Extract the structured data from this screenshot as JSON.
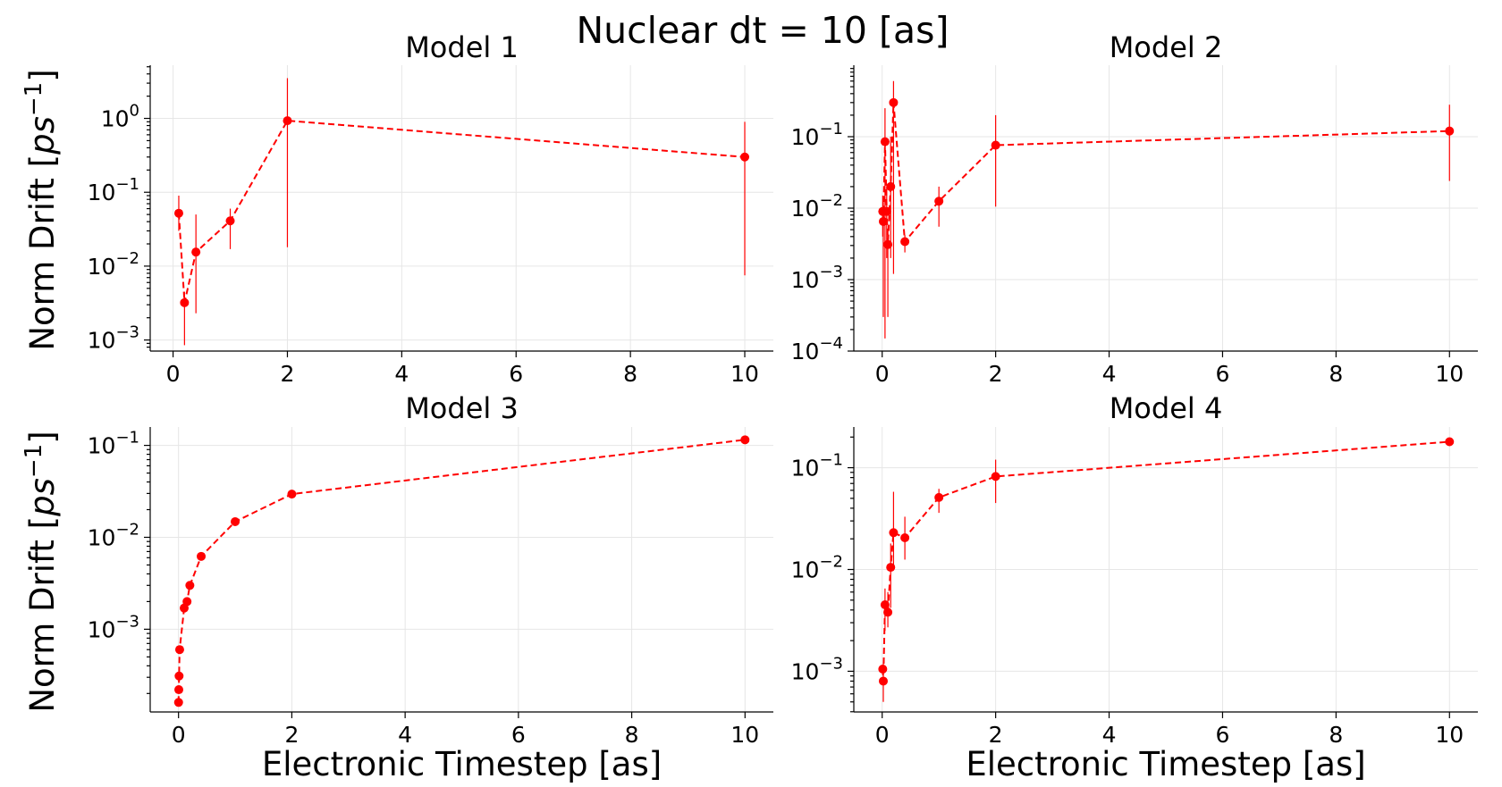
{
  "figure": {
    "suptitle": "Nuclear dt = 10 [as]",
    "line_color": "#ff0000"
  },
  "chart_data": [
    {
      "type": "line",
      "title": "Model 1",
      "xlabel": "",
      "ylabel": "Norm Drift [ps^-1]",
      "yscale": "log",
      "grid": true,
      "xlim": [
        -0.4,
        10.5
      ],
      "ylim_exp": [
        -3.15,
        0.72
      ],
      "xticks": [
        0,
        2,
        4,
        6,
        8,
        10
      ],
      "yticks_exp": [
        -3,
        -2,
        -1,
        0
      ],
      "points": [
        {
          "x": 0.1,
          "y": 0.052,
          "lo": 0.03,
          "hi": 0.09
        },
        {
          "x": 0.2,
          "y": 0.0032,
          "lo": 0.00085,
          "hi": 0.0045
        },
        {
          "x": 0.4,
          "y": 0.0155,
          "lo": 0.0023,
          "hi": 0.05
        },
        {
          "x": 1.0,
          "y": 0.041,
          "lo": 0.017,
          "hi": 0.06
        },
        {
          "x": 2.0,
          "y": 0.93,
          "lo": 0.018,
          "hi": 3.5
        },
        {
          "x": 10.0,
          "y": 0.3,
          "lo": 0.0075,
          "hi": 0.9
        }
      ]
    },
    {
      "type": "line",
      "title": "Model 2",
      "xlabel": "",
      "ylabel": "",
      "yscale": "log",
      "grid": true,
      "xlim": [
        -0.5,
        10.5
      ],
      "ylim_exp": [
        -4.0,
        -0.0
      ],
      "xticks": [
        0,
        2,
        4,
        6,
        8,
        10
      ],
      "yticks_exp": [
        -4,
        -3,
        -2,
        -1
      ],
      "points": [
        {
          "x": 0.01,
          "y": 0.009,
          "lo": 0.004,
          "hi": 0.015
        },
        {
          "x": 0.02,
          "y": 0.0065,
          "lo": 0.0003,
          "hi": 0.012
        },
        {
          "x": 0.05,
          "y": 0.085,
          "lo": 0.00015,
          "hi": 0.25
        },
        {
          "x": 0.08,
          "y": 0.009,
          "lo": 0.002,
          "hi": 0.02
        },
        {
          "x": 0.1,
          "y": 0.0031,
          "lo": 0.0003,
          "hi": 0.005
        },
        {
          "x": 0.15,
          "y": 0.02,
          "lo": 0.002,
          "hi": 0.1
        },
        {
          "x": 0.2,
          "y": 0.3,
          "lo": 0.0012,
          "hi": 0.6
        },
        {
          "x": 0.4,
          "y": 0.0034,
          "lo": 0.0024,
          "hi": 0.0042
        },
        {
          "x": 1.0,
          "y": 0.0125,
          "lo": 0.0055,
          "hi": 0.02
        },
        {
          "x": 2.0,
          "y": 0.076,
          "lo": 0.0105,
          "hi": 0.2
        },
        {
          "x": 10.0,
          "y": 0.12,
          "lo": 0.024,
          "hi": 0.28
        }
      ]
    },
    {
      "type": "line",
      "title": "Model 3",
      "xlabel": "Electronic Timestep [as]",
      "ylabel": "Norm Drift [ps^-1]",
      "yscale": "log",
      "grid": true,
      "xlim": [
        -0.5,
        10.5
      ],
      "ylim_exp": [
        -3.9,
        -0.8
      ],
      "xticks": [
        0,
        2,
        4,
        6,
        8,
        10
      ],
      "yticks_exp": [
        -3,
        -2,
        -1
      ],
      "points": [
        {
          "x": 0.001,
          "y": 0.00016,
          "lo": 0.00016,
          "hi": 0.00016
        },
        {
          "x": 0.005,
          "y": 0.00022,
          "lo": 0.00022,
          "hi": 0.00022
        },
        {
          "x": 0.01,
          "y": 0.00031,
          "lo": 0.00031,
          "hi": 0.00031
        },
        {
          "x": 0.02,
          "y": 0.0006,
          "lo": 0.0006,
          "hi": 0.0006
        },
        {
          "x": 0.1,
          "y": 0.0017,
          "lo": 0.0017,
          "hi": 0.0017
        },
        {
          "x": 0.15,
          "y": 0.002,
          "lo": 0.002,
          "hi": 0.002
        },
        {
          "x": 0.2,
          "y": 0.003,
          "lo": 0.003,
          "hi": 0.003
        },
        {
          "x": 0.4,
          "y": 0.0062,
          "lo": 0.0062,
          "hi": 0.0062
        },
        {
          "x": 1.0,
          "y": 0.0148,
          "lo": 0.0148,
          "hi": 0.0148
        },
        {
          "x": 2.0,
          "y": 0.0295,
          "lo": 0.0295,
          "hi": 0.0295
        },
        {
          "x": 10.0,
          "y": 0.115,
          "lo": 0.115,
          "hi": 0.115
        }
      ]
    },
    {
      "type": "line",
      "title": "Model 4",
      "xlabel": "Electronic Timestep [as]",
      "ylabel": "",
      "yscale": "log",
      "grid": true,
      "xlim": [
        -0.5,
        10.5
      ],
      "ylim_exp": [
        -3.4,
        -0.6
      ],
      "xticks": [
        0,
        2,
        4,
        6,
        8,
        10
      ],
      "yticks_exp": [
        -3,
        -2,
        -1
      ],
      "points": [
        {
          "x": 0.01,
          "y": 0.00105,
          "lo": 0.00105,
          "hi": 0.00105
        },
        {
          "x": 0.02,
          "y": 0.0008,
          "lo": 0.0005,
          "hi": 0.0012
        },
        {
          "x": 0.05,
          "y": 0.0045,
          "lo": 0.0025,
          "hi": 0.0065
        },
        {
          "x": 0.1,
          "y": 0.0038,
          "lo": 0.0027,
          "hi": 0.006
        },
        {
          "x": 0.15,
          "y": 0.0105,
          "lo": 0.0042,
          "hi": 0.018
        },
        {
          "x": 0.2,
          "y": 0.023,
          "lo": 0.01,
          "hi": 0.058
        },
        {
          "x": 0.4,
          "y": 0.0205,
          "lo": 0.0125,
          "hi": 0.033
        },
        {
          "x": 1.0,
          "y": 0.051,
          "lo": 0.036,
          "hi": 0.062
        },
        {
          "x": 2.0,
          "y": 0.082,
          "lo": 0.045,
          "hi": 0.12
        },
        {
          "x": 10.0,
          "y": 0.18,
          "lo": 0.18,
          "hi": 0.18
        }
      ]
    }
  ]
}
